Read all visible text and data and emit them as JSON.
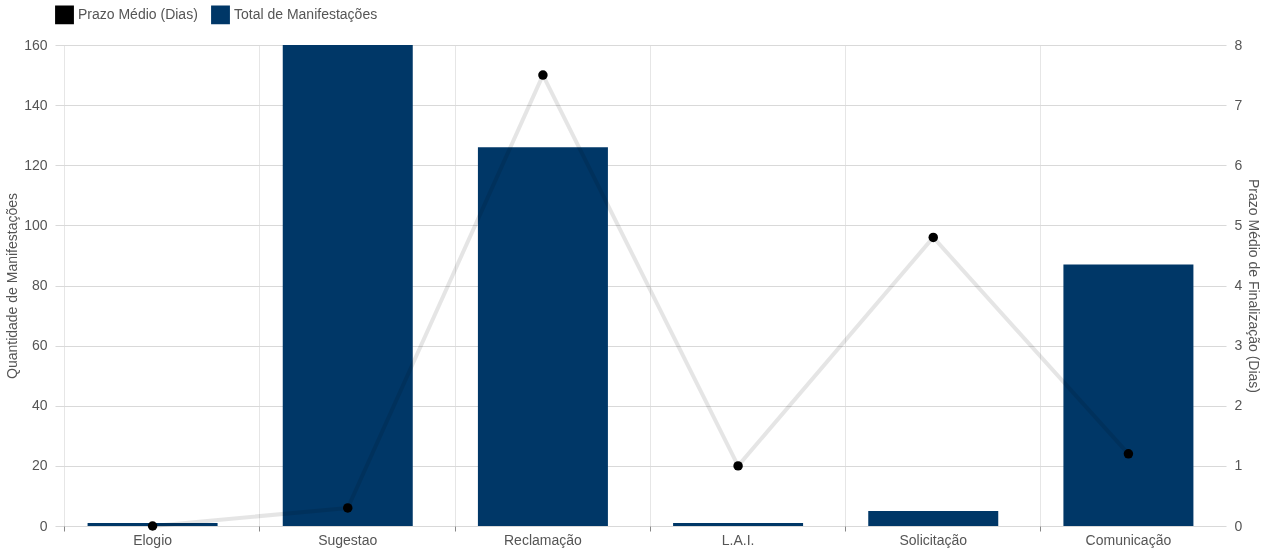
{
  "chart_data": {
    "type": "bar",
    "categories": [
      "Elogio",
      "Sugestao",
      "Reclamação",
      "L.A.I.",
      "Solicitação",
      "Comunicação"
    ],
    "series": [
      {
        "name": "Prazo Médio (Dias)",
        "type": "line",
        "axis": "y2",
        "color": "#000000",
        "values": [
          0.0,
          0.3,
          7.5,
          1.0,
          4.8,
          1.2
        ]
      },
      {
        "name": "Total de Manifestações",
        "color": "#003767",
        "values": [
          1,
          160,
          126,
          1,
          5,
          87
        ]
      }
    ],
    "ylabel": "Quantidade de Manifestações",
    "y2label": "Prazo Médio de Finalização (Dias)",
    "ylim": [
      0,
      160
    ],
    "yticks": [
      0,
      20,
      40,
      60,
      80,
      100,
      120,
      140,
      160
    ],
    "y2lim": [
      0,
      8
    ],
    "y2ticks": [
      0,
      1,
      2,
      3,
      4,
      5,
      6,
      7,
      8
    ],
    "grid": true,
    "legend": "top",
    "marker": "circle"
  }
}
